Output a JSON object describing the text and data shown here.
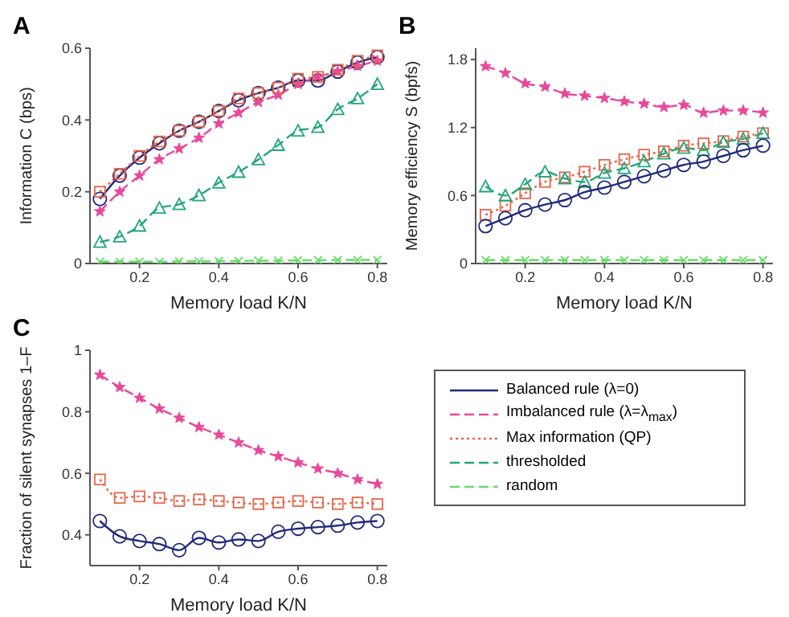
{
  "chart_data": [
    {
      "type": "line",
      "title": "A",
      "xlabel": "Memory load K/N",
      "ylabel": "Information C (bps)",
      "x": [
        0.1,
        0.15,
        0.2,
        0.25,
        0.3,
        0.35,
        0.4,
        0.45,
        0.5,
        0.55,
        0.6,
        0.65,
        0.7,
        0.75,
        0.8
      ],
      "xlim": [
        0.075,
        0.825
      ],
      "xticks": [
        0.2,
        0.4,
        0.6,
        0.8
      ],
      "ylim": [
        0,
        0.6
      ],
      "yticks": [
        0,
        0.2,
        0.4,
        0.6
      ],
      "legend": "bottom right",
      "series": [
        {
          "name": "Balanced rule (λ=0)",
          "color": "#1f2a7a",
          "line_style": "solid",
          "marker": "circle",
          "values": [
            0.18,
            0.245,
            0.295,
            0.335,
            0.37,
            0.395,
            0.425,
            0.455,
            0.475,
            0.49,
            0.51,
            0.51,
            0.535,
            0.56,
            0.575
          ]
        },
        {
          "name": "Imbalanced rule (λ=λ$_{max}$)",
          "color": "#e8489a",
          "line_style": "dashed",
          "marker": "star",
          "values": [
            0.145,
            0.2,
            0.245,
            0.29,
            0.32,
            0.35,
            0.39,
            0.42,
            0.45,
            0.47,
            0.5,
            0.52,
            0.535,
            0.55,
            0.565
          ]
        },
        {
          "name": "Max information (QP)",
          "color": "#e8664a",
          "line_style": "dotted",
          "marker": "square",
          "values": [
            0.2,
            0.25,
            0.3,
            0.34,
            0.37,
            0.395,
            0.425,
            0.46,
            0.475,
            0.49,
            0.515,
            0.52,
            0.54,
            0.565,
            0.58
          ]
        },
        {
          "name": "thresholded",
          "color": "#21a67a",
          "line_style": "dashed",
          "marker": "triangle",
          "values": [
            0.06,
            0.075,
            0.105,
            0.155,
            0.165,
            0.19,
            0.225,
            0.255,
            0.29,
            0.33,
            0.37,
            0.38,
            0.43,
            0.46,
            0.5
          ]
        },
        {
          "name": "random",
          "color": "#66dd66",
          "line_style": "dashed",
          "marker": "cross",
          "values": [
            0.005,
            0.005,
            0.005,
            0.005,
            0.006,
            0.006,
            0.007,
            0.007,
            0.008,
            0.008,
            0.009,
            0.009,
            0.01,
            0.01,
            0.01
          ]
        }
      ]
    },
    {
      "type": "line",
      "title": "B",
      "xlabel": "Memory load K/N",
      "ylabel": "Memory efficiency S (bpfs)",
      "x": [
        0.1,
        0.15,
        0.2,
        0.25,
        0.3,
        0.35,
        0.4,
        0.45,
        0.5,
        0.55,
        0.6,
        0.65,
        0.7,
        0.75,
        0.8
      ],
      "xlim": [
        0.075,
        0.825
      ],
      "xticks": [
        0.2,
        0.4,
        0.6,
        0.8
      ],
      "ylim": [
        0,
        1.9
      ],
      "yticks": [
        0,
        0.6,
        1.2,
        1.8
      ],
      "series": [
        {
          "color": "#e8489a",
          "line_style": "dashed",
          "marker": "star",
          "values": [
            1.74,
            1.68,
            1.59,
            1.56,
            1.5,
            1.48,
            1.46,
            1.43,
            1.41,
            1.38,
            1.4,
            1.33,
            1.35,
            1.35,
            1.33
          ]
        },
        {
          "color": "#e8664a",
          "line_style": "dotted",
          "marker": "square",
          "values": [
            0.43,
            0.51,
            0.62,
            0.72,
            0.76,
            0.81,
            0.87,
            0.92,
            0.96,
            0.99,
            1.04,
            1.06,
            1.08,
            1.12,
            1.15
          ]
        },
        {
          "color": "#21a67a",
          "line_style": "dashed",
          "marker": "triangle",
          "values": [
            0.68,
            0.6,
            0.7,
            0.81,
            0.75,
            0.72,
            0.8,
            0.84,
            0.9,
            0.97,
            1.02,
            1.0,
            1.07,
            1.1,
            1.15
          ]
        },
        {
          "color": "#1f2a7a",
          "line_style": "solid",
          "marker": "circle",
          "values": [
            0.33,
            0.4,
            0.47,
            0.52,
            0.56,
            0.63,
            0.67,
            0.72,
            0.77,
            0.82,
            0.87,
            0.9,
            0.95,
            1.0,
            1.04
          ]
        },
        {
          "color": "#66dd66",
          "line_style": "dashed",
          "marker": "cross",
          "values": [
            0.03,
            0.03,
            0.03,
            0.03,
            0.03,
            0.03,
            0.03,
            0.03,
            0.03,
            0.03,
            0.03,
            0.03,
            0.03,
            0.03,
            0.03
          ]
        }
      ]
    },
    {
      "type": "line",
      "title": "C",
      "xlabel": "Memory load K/N",
      "ylabel": "Fraction of silent synapses 1–F",
      "x": [
        0.1,
        0.15,
        0.2,
        0.25,
        0.3,
        0.35,
        0.4,
        0.45,
        0.5,
        0.55,
        0.6,
        0.65,
        0.7,
        0.75,
        0.8
      ],
      "xlim": [
        0.075,
        0.825
      ],
      "xticks": [
        0.2,
        0.4,
        0.6,
        0.8
      ],
      "ylim": [
        0.3,
        1
      ],
      "yticks": [
        0.4,
        0.6,
        0.8,
        1
      ],
      "series": [
        {
          "color": "#e8489a",
          "line_style": "dashed",
          "marker": "star",
          "values": [
            0.92,
            0.88,
            0.845,
            0.81,
            0.78,
            0.75,
            0.725,
            0.7,
            0.675,
            0.655,
            0.635,
            0.615,
            0.6,
            0.58,
            0.565
          ]
        },
        {
          "color": "#e8664a",
          "line_style": "dotted",
          "marker": "square",
          "values": [
            0.58,
            0.52,
            0.525,
            0.52,
            0.51,
            0.515,
            0.51,
            0.505,
            0.5,
            0.505,
            0.51,
            0.505,
            0.5,
            0.505,
            0.5
          ]
        },
        {
          "color": "#1f2a7a",
          "line_style": "solid",
          "marker": "circle",
          "values": [
            0.445,
            0.395,
            0.38,
            0.37,
            0.35,
            0.39,
            0.375,
            0.385,
            0.38,
            0.41,
            0.42,
            0.425,
            0.43,
            0.44,
            0.445
          ]
        }
      ]
    }
  ]
}
